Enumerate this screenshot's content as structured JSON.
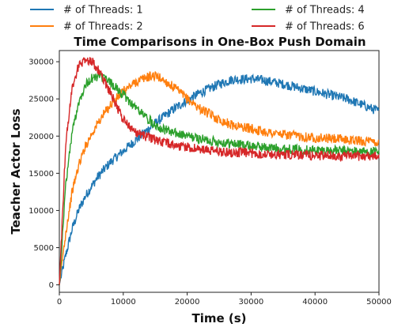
{
  "chart_data": {
    "type": "line",
    "title": "Time Comparisons in One-Box Push Domain",
    "xlabel": "Time (s)",
    "ylabel": "Teacher Actor Loss",
    "xlim": [
      0,
      50000
    ],
    "ylim": [
      -1000,
      31500
    ],
    "xticks": [
      0,
      10000,
      20000,
      30000,
      40000,
      50000
    ],
    "yticks": [
      0,
      5000,
      10000,
      15000,
      20000,
      25000,
      30000
    ],
    "x": [
      0,
      1000,
      2000,
      3000,
      4000,
      5000,
      6000,
      7000,
      8000,
      10000,
      12000,
      14000,
      15000,
      16000,
      18000,
      20000,
      22000,
      25000,
      27000,
      30000,
      32000,
      35000,
      40000,
      45000,
      48000,
      50000
    ],
    "legend_position": "above-plot",
    "grid": false,
    "series": [
      {
        "name": "# of Threads: 1",
        "color": "#1f77b4",
        "values": [
          0,
          4000,
          7500,
          10000,
          11800,
          13200,
          14500,
          15500,
          16500,
          18000,
          19500,
          21000,
          21700,
          22400,
          23700,
          24800,
          25800,
          27000,
          27600,
          27700,
          27500,
          27000,
          26000,
          25000,
          24000,
          23300
        ]
      },
      {
        "name": "# of Threads: 2",
        "color": "#ff7f0e",
        "values": [
          0,
          7000,
          12500,
          16000,
          18500,
          20200,
          21700,
          23000,
          24200,
          26000,
          27300,
          28000,
          28100,
          27700,
          26500,
          25000,
          23700,
          22200,
          21500,
          21000,
          20600,
          20200,
          19800,
          19500,
          19300,
          19100
        ]
      },
      {
        "name": "# of Threads: 4",
        "color": "#2ca02c",
        "values": [
          0,
          13500,
          20500,
          24500,
          26800,
          27700,
          28000,
          27800,
          27200,
          25500,
          23800,
          22200,
          21600,
          21000,
          20400,
          20000,
          19600,
          19200,
          19000,
          18700,
          18500,
          18300,
          18100,
          18000,
          17900,
          17800
        ]
      },
      {
        "name": "# of Threads: 6",
        "color": "#d62728",
        "values": [
          0,
          19000,
          26500,
          29400,
          30300,
          30100,
          29000,
          27500,
          25800,
          22200,
          20500,
          19800,
          19500,
          19200,
          18800,
          18500,
          18200,
          17900,
          17800,
          17700,
          17600,
          17500,
          17400,
          17300,
          17300,
          17300
        ]
      }
    ]
  }
}
